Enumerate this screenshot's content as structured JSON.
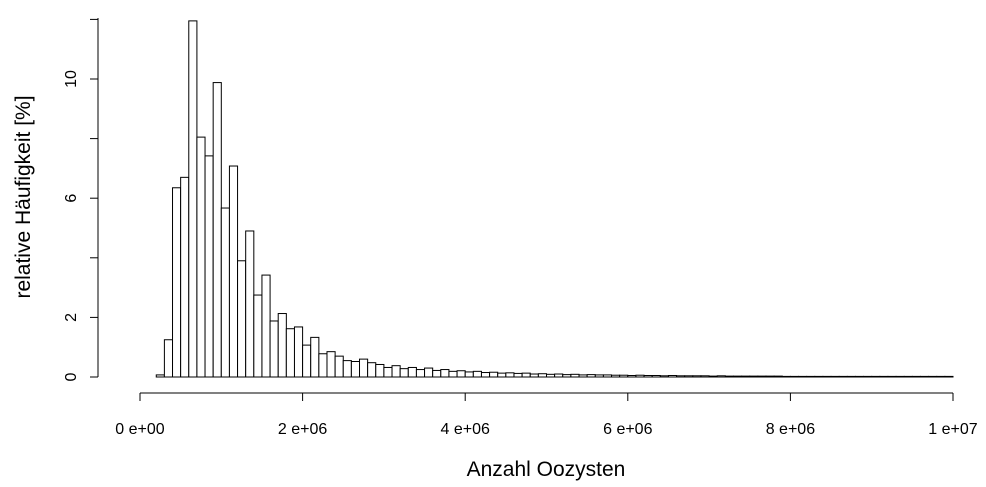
{
  "chart_data": {
    "type": "bar",
    "title": "",
    "xlabel": "Anzahl Oozysten",
    "ylabel": "relative Häufigkeit [%]",
    "x_ticks": [
      0,
      2000000,
      4000000,
      6000000,
      8000000,
      10000000
    ],
    "x_tick_labels": [
      "0 e+00",
      "2 e+06",
      "4 e+06",
      "6 e+06",
      "8 e+06",
      "1 e+07"
    ],
    "y_ticks": [
      0,
      2,
      6,
      10
    ],
    "y_tick_labels": [
      "0",
      "2",
      "6",
      "10"
    ],
    "xlim": [
      0,
      10000000
    ],
    "ylim": [
      0,
      12
    ],
    "grid": false,
    "bin_width": 100000,
    "bin_start": 200000,
    "values": [
      0.07,
      1.25,
      6.35,
      6.7,
      11.95,
      8.05,
      7.42,
      9.88,
      5.67,
      7.08,
      3.9,
      4.9,
      2.75,
      3.42,
      1.88,
      2.13,
      1.62,
      1.68,
      1.07,
      1.33,
      0.78,
      0.85,
      0.7,
      0.55,
      0.52,
      0.6,
      0.48,
      0.42,
      0.32,
      0.38,
      0.28,
      0.32,
      0.25,
      0.3,
      0.22,
      0.25,
      0.19,
      0.21,
      0.17,
      0.19,
      0.15,
      0.16,
      0.13,
      0.14,
      0.12,
      0.13,
      0.1,
      0.11,
      0.09,
      0.1,
      0.08,
      0.09,
      0.07,
      0.08,
      0.07,
      0.07,
      0.06,
      0.06,
      0.05,
      0.06,
      0.05,
      0.05,
      0.04,
      0.05,
      0.04,
      0.04,
      0.04,
      0.04,
      0.03,
      0.04,
      0.03,
      0.03,
      0.03,
      0.03,
      0.03,
      0.03,
      0.03,
      0.02,
      0.02,
      0.02,
      0.02,
      0.02,
      0.02,
      0.02,
      0.02,
      0.02,
      0.02,
      0.02,
      0.02,
      0.02,
      0.02,
      0.02,
      0.02,
      0.02,
      0.02,
      0.02,
      0.02,
      0.02
    ]
  }
}
